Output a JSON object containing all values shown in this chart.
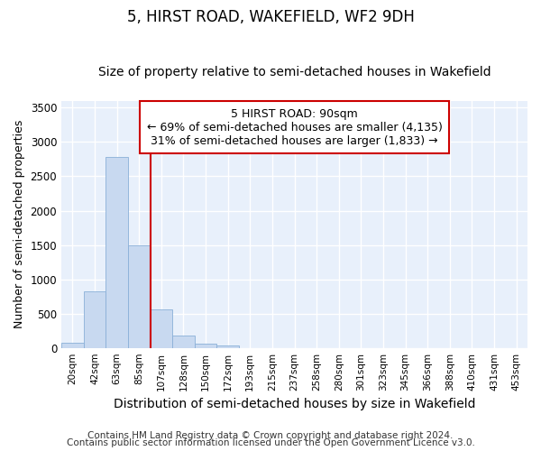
{
  "title": "5, HIRST ROAD, WAKEFIELD, WF2 9DH",
  "subtitle": "Size of property relative to semi-detached houses in Wakefield",
  "xlabel": "Distribution of semi-detached houses by size in Wakefield",
  "ylabel": "Number of semi-detached properties",
  "categories": [
    "20sqm",
    "42sqm",
    "63sqm",
    "85sqm",
    "107sqm",
    "128sqm",
    "150sqm",
    "172sqm",
    "193sqm",
    "215sqm",
    "237sqm",
    "258sqm",
    "280sqm",
    "301sqm",
    "323sqm",
    "345sqm",
    "366sqm",
    "388sqm",
    "410sqm",
    "431sqm",
    "453sqm"
  ],
  "values": [
    75,
    830,
    2780,
    1500,
    560,
    175,
    65,
    35,
    0,
    0,
    0,
    0,
    0,
    0,
    0,
    0,
    0,
    0,
    0,
    0,
    0
  ],
  "bar_color": "#c8d9f0",
  "bar_edgecolor": "#8ab0d8",
  "bg_color": "#e8f0fb",
  "grid_color": "#ffffff",
  "vline_color": "#cc0000",
  "vline_pos": 3.5,
  "property_label": "5 HIRST ROAD: 90sqm",
  "smaller_label": "← 69% of semi-detached houses are smaller (4,135)",
  "larger_label": "31% of semi-detached houses are larger (1,833) →",
  "annotation_box_facecolor": "#ffffff",
  "annotation_box_edgecolor": "#cc0000",
  "ylim": [
    0,
    3600
  ],
  "yticks": [
    0,
    500,
    1000,
    1500,
    2000,
    2500,
    3000,
    3500
  ],
  "footer1": "Contains HM Land Registry data © Crown copyright and database right 2024.",
  "footer2": "Contains public sector information licensed under the Open Government Licence v3.0.",
  "title_fontsize": 12,
  "subtitle_fontsize": 10,
  "annotation_fontsize": 9,
  "footer_fontsize": 7.5,
  "ylabel_fontsize": 9,
  "xlabel_fontsize": 10
}
